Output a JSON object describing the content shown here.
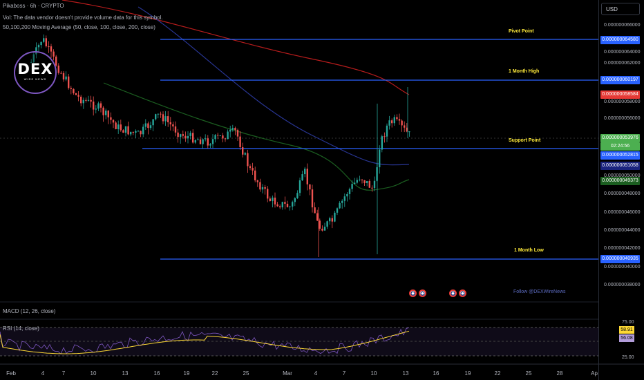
{
  "header": {
    "symbol_line": "Pikaboss · 6h · CRYPTO",
    "volume_note": "Vol: The data vendor doesn't provide volume data for this symbol.",
    "ma_line": "50,100,200 Moving Average (50, close, 100, close, 200, close)"
  },
  "currency_button": "USD",
  "price_axis": {
    "ticks": [
      "0.000000066000",
      "0.000000064000",
      "0.000000062000",
      "0.000000058000",
      "0.000000056000",
      "0.000000050000",
      "0.000000048000",
      "0.000000046000",
      "0.000000044000",
      "0.000000042000",
      "0.000000040000",
      "0.000000038000"
    ]
  },
  "price_tags": {
    "pivot": "0.000000064580",
    "month_high": "0.000000060197",
    "ma_red": "0.000000058584",
    "last_price": "0.000000053976",
    "countdown": "02:24:56",
    "support": "0.000000052815",
    "ma_blue": "0.000000051058",
    "ma_green": "0.000000049373",
    "month_low": "0.000000040935"
  },
  "levels": {
    "pivot_label": "Pivot Point",
    "high_label": "1 Month High",
    "support_label": "Support Point",
    "low_label": "1 Month Low"
  },
  "watermark": "Follow @DEXWireNews",
  "logo": {
    "main": "DEX",
    "sub": "WIRE NEWS"
  },
  "indicators": {
    "macd_label": "MACD (12, 26, close)",
    "rsi_label": "RSI (14, close)",
    "rsi_ticks": [
      "75.00",
      "25.00"
    ],
    "rsi_value": "58.91",
    "rsi_ma_value": "56.08"
  },
  "time_axis": [
    "Feb",
    "4",
    "7",
    "10",
    "13",
    "16",
    "19",
    "22",
    "25",
    "Mar",
    "4",
    "7",
    "10",
    "13",
    "16",
    "19",
    "22",
    "25",
    "28",
    "Ap"
  ],
  "colors": {
    "up": "#26a69a",
    "down": "#ef5350",
    "level_line": "#2962ff",
    "ma50": "#1b5e20",
    "ma100": "#283593",
    "ma200": "#b71c1c",
    "rsi_line": "#7e57c2",
    "rsi_ma": "#fdd835",
    "label_yellow": "#ffeb3b"
  }
}
